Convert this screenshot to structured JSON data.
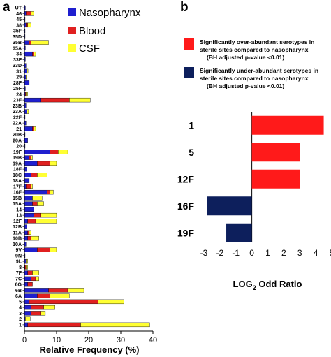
{
  "panel_a_letter": "a",
  "panel_b_letter": "b",
  "colors": {
    "nasopharynx": "#1f1fcf",
    "blood": "#e02020",
    "csf": "#ffff33",
    "over": "#ff1a1a",
    "under": "#0d1f5c"
  },
  "chart_data": [
    {
      "type": "bar",
      "orientation": "horizontal",
      "stacked": true,
      "title": "",
      "xlabel": "Relative Frequency (%)",
      "ylabel": "",
      "xlim": [
        0,
        40
      ],
      "xticks": [
        "0",
        "10",
        "20",
        "30",
        "40"
      ],
      "legend_position": "top-right",
      "categories": [
        "UT",
        "46",
        "45",
        "38",
        "35F",
        "35D",
        "35B",
        "35A",
        "34",
        "33F",
        "33D",
        "31",
        "29",
        "28F",
        "25F",
        "24",
        "23F",
        "23B",
        "23A",
        "22F",
        "22A",
        "21",
        "20B",
        "20A",
        "20",
        "19F",
        "19B",
        "19A",
        "18F",
        "18C",
        "18A",
        "17F",
        "16F",
        "15B",
        "15A",
        "14",
        "13",
        "12F",
        "12B",
        "11A",
        "10B",
        "10A",
        "9V",
        "9N",
        "9L",
        "8",
        "7F",
        "7C",
        "6G",
        "6B",
        "6A",
        "5",
        "4",
        "3",
        "2",
        "1"
      ],
      "series": [
        {
          "name": "Nasopharynx",
          "values": [
            0.3,
            0.5,
            0.2,
            0.5,
            0.2,
            0.2,
            1.5,
            0.3,
            2.5,
            0.3,
            0.5,
            0.8,
            0.5,
            1.5,
            0.3,
            0.3,
            5,
            0.5,
            0.8,
            0.2,
            0.5,
            2.5,
            0.2,
            1,
            0.2,
            8,
            1.5,
            4,
            0.8,
            2,
            1.5,
            0.5,
            7,
            2.5,
            2.5,
            3,
            3,
            1,
            0.8,
            1,
            1,
            0.5,
            4,
            0.2,
            0.5,
            0.2,
            1,
            2,
            1,
            7.5,
            4,
            1.5,
            2,
            2,
            0.3,
            1
          ]
        },
        {
          "name": "Blood",
          "values": [
            0,
            1.5,
            0,
            0.5,
            0,
            0,
            0.5,
            0,
            0.5,
            0,
            0,
            0,
            0,
            0,
            0,
            0.2,
            9,
            0,
            0,
            0,
            0,
            0.5,
            0,
            0,
            0,
            2.5,
            0.5,
            4,
            0,
            2,
            0,
            1.5,
            1,
            0,
            1.5,
            0,
            2,
            2.5,
            0,
            0.5,
            1,
            0,
            4,
            0,
            0,
            0.3,
            1.5,
            1.5,
            1.5,
            6,
            4,
            21.5,
            4,
            3,
            0,
            16.5
          ]
        },
        {
          "name": "CSF",
          "values": [
            0,
            1,
            0,
            1,
            0,
            0,
            5.5,
            0,
            0.5,
            0,
            0,
            0.3,
            0.3,
            0,
            0,
            0.5,
            6.5,
            0,
            0.5,
            0,
            0,
            0.5,
            0,
            0,
            0,
            3,
            0.5,
            2,
            0,
            3,
            0,
            0.5,
            1,
            3,
            2,
            0,
            5,
            6.5,
            0,
            0.5,
            2.5,
            0,
            2,
            0,
            0.5,
            0.5,
            2,
            1,
            0,
            5,
            6,
            8,
            3.5,
            1.5,
            1.5,
            21.5
          ]
        }
      ]
    },
    {
      "type": "bar",
      "orientation": "horizontal",
      "title": "",
      "xlabel_prefix": "LOG",
      "xlabel_sub": "2",
      "xlabel_suffix": " Odd Ratio",
      "xlim": [
        -3,
        4.5
      ],
      "xticks": [
        "-3",
        "-2",
        "-1",
        "0",
        "1",
        "2",
        "3",
        "4",
        "5"
      ],
      "categories": [
        "1",
        "5",
        "12F",
        "16F",
        "19F"
      ],
      "values": [
        4.5,
        3,
        3,
        -2.8,
        -1.6
      ],
      "legend": [
        {
          "line1": "Significantly over-abundant serotypes in",
          "line2": "sterile sites compared to nasopharynx",
          "line3": "(BH adjusted p-value    <0.01)"
        },
        {
          "line1": "Significantly under-abundant serotypes in",
          "line2": "sterile sites compared to nasopharynx",
          "line3": "(BH adjusted p-value    <0.01)"
        }
      ]
    }
  ]
}
